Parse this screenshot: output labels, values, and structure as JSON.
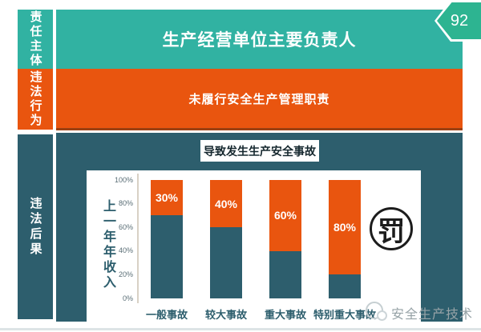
{
  "page": {
    "number_badge": "92",
    "watermark_text": "安全生产技术"
  },
  "sidebar": {
    "items": [
      {
        "id": "responsibility-subject",
        "label": "责任主体"
      },
      {
        "id": "illegal-act",
        "label": "违法行为"
      },
      {
        "id": "illegal-consequence",
        "label": "违法后果"
      }
    ]
  },
  "main": {
    "title": "生产经营单位主要负责人",
    "violation_text": "未履行安全生产管理职责",
    "consequence_badge": "导致发生生产安全事故",
    "penalty_stamp": "罚"
  },
  "chart_data": {
    "type": "bar",
    "subtype": "stacked-percent",
    "categories": [
      "一般事故",
      "较大事故",
      "重大事故",
      "特别重大事故"
    ],
    "series": [
      {
        "name": "base",
        "color": "#2d5e6d",
        "values": [
          70,
          60,
          40,
          20
        ]
      },
      {
        "name": "highlight",
        "color": "#e9550f",
        "values": [
          30,
          40,
          60,
          80
        ],
        "data_labels": [
          "30%",
          "40%",
          "60%",
          "80%"
        ]
      }
    ],
    "ylabel": "上一年年收入",
    "yticks": [
      "100%",
      "80%",
      "60%",
      "40%",
      "20%",
      "0%"
    ],
    "ylim": [
      0,
      100
    ],
    "grid": false,
    "legend": false
  },
  "colors": {
    "teal": "#31b2a2",
    "hex_green": "#2db491",
    "orange": "#e9550f",
    "dark": "#2d5e6d",
    "panel": "#ffffff"
  }
}
